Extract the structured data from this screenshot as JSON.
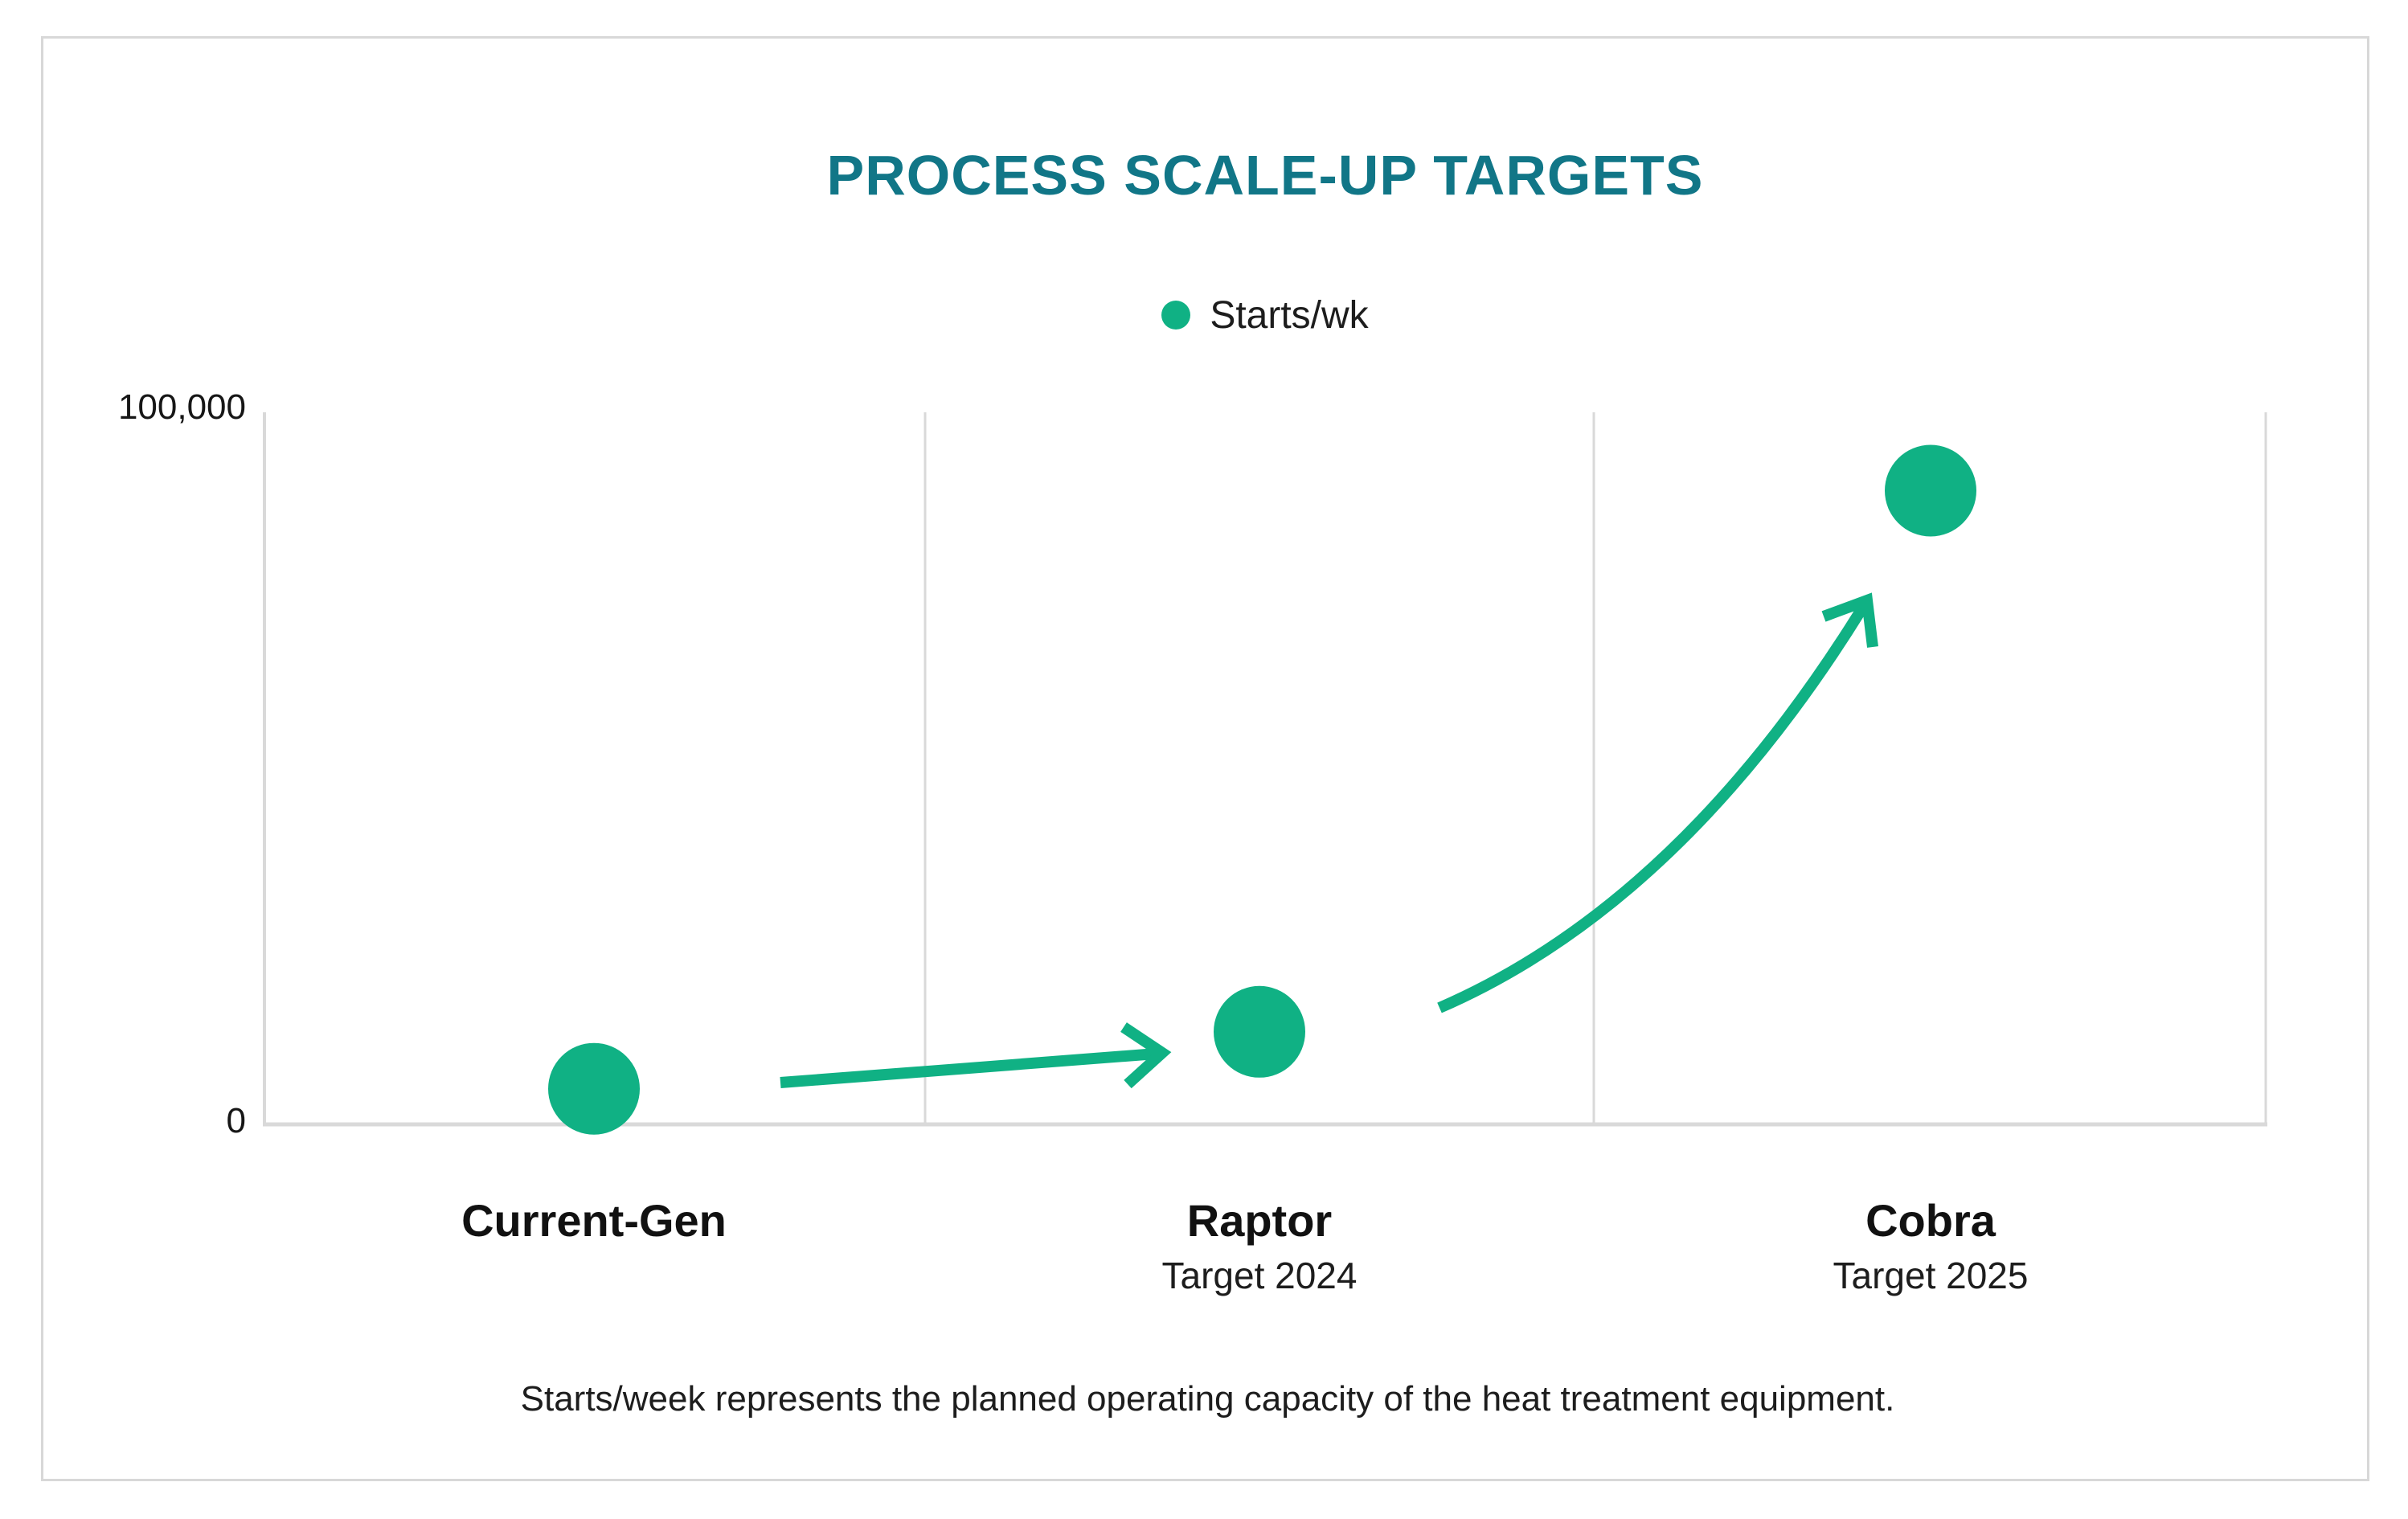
{
  "chart": {
    "title": "PROCESS SCALE-UP TARGETS",
    "legend": {
      "label": "Starts/wk"
    },
    "y_axis": {
      "min": 0,
      "max": 100000,
      "min_label": "0",
      "max_label": "100,000"
    },
    "footnote": "Starts/week represents the planned operating capacity of the heat treatment equipment."
  },
  "chart_data": {
    "type": "scatter",
    "title": "PROCESS SCALE-UP TARGETS",
    "legend_entries": [
      "Starts/wk"
    ],
    "legend_position": "top-center",
    "categories": [
      "Current-Gen",
      "Raptor",
      "Cobra"
    ],
    "category_sublabels": [
      "",
      "Target 2024",
      "Target 2025"
    ],
    "series": [
      {
        "name": "Starts/wk",
        "values": [
          5000,
          13000,
          89000
        ]
      }
    ],
    "ylim": [
      0,
      100000
    ],
    "y_tick_labels": [
      "0",
      "100,000"
    ],
    "grid": "vertical category separators only",
    "annotations": [
      "slightly rising arrow from Current-Gen point toward Raptor point",
      "upward-curving arrow from Raptor point toward Cobra point"
    ]
  },
  "colors": {
    "accent_green": "#10b184",
    "title_teal": "#117687",
    "grid_gray": "#d9d9d9",
    "border_gray": "#d8d8d8",
    "text_dark": "#1c1c1c"
  }
}
